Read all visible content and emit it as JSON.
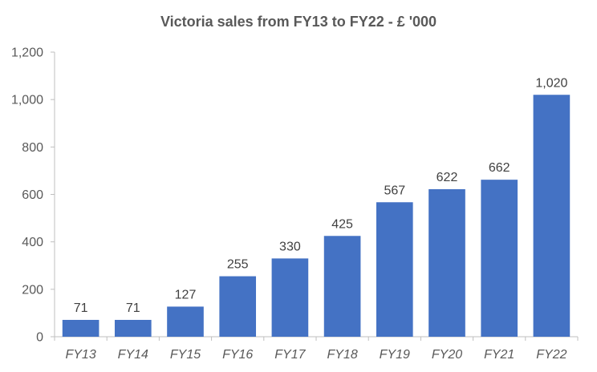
{
  "chart_data": {
    "type": "bar",
    "title": "Victoria sales from FY13 to FY22 - £ '000",
    "categories": [
      "FY13",
      "FY14",
      "FY15",
      "FY16",
      "FY17",
      "FY18",
      "FY19",
      "FY20",
      "FY21",
      "FY22"
    ],
    "values": [
      71,
      71,
      127,
      255,
      330,
      425,
      567,
      622,
      662,
      1020
    ],
    "data_labels": [
      "71",
      "71",
      "127",
      "255",
      "330",
      "425",
      "567",
      "622",
      "662",
      "1,020"
    ],
    "yticks": [
      0,
      200,
      400,
      600,
      800,
      1000,
      1200
    ],
    "ytick_labels": [
      "0",
      "200",
      "400",
      "600",
      "800",
      "1,000",
      "1,200"
    ],
    "ylim": [
      0,
      1200
    ],
    "grid": false,
    "legend": "none",
    "bar_color": "#4472C4"
  }
}
